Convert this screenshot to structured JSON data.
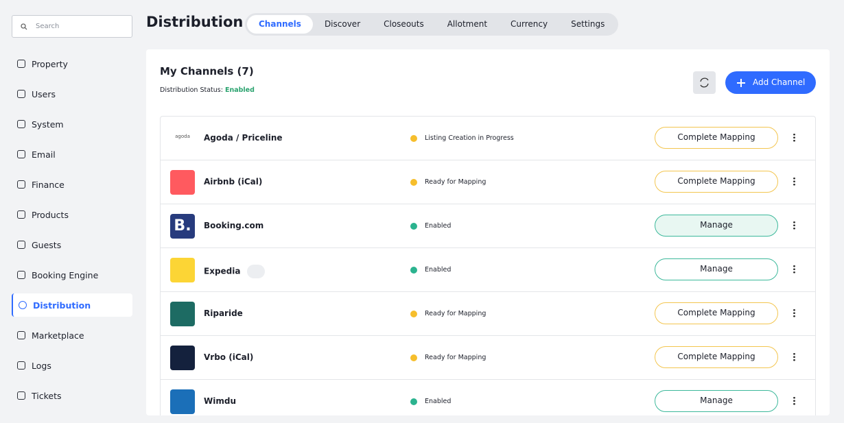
{
  "sidebar": {
    "search": "Search",
    "nav": [
      "Property",
      "Users",
      "System",
      "Email",
      "Finance",
      "Products",
      "Guests",
      "Booking Engine",
      "Distribution",
      "Marketplace",
      "Logs",
      "Tickets"
    ],
    "active": 8
  },
  "header": {
    "title": "Distribution",
    "tabs": [
      "Channels",
      "Discover",
      "Closeouts",
      "Allotment",
      "Currency",
      "Settings"
    ],
    "active_tab": 0
  },
  "card": {
    "title": "My Channels (7)",
    "status_label": "Distribution Status:",
    "status_value": "Enabled",
    "add_button": "Add Channel",
    "channels": [
      {
        "name": "Agoda / Priceline",
        "logo": "agoda",
        "logo_bg": "#ffffff",
        "status": "Listing Creation in Progress",
        "status_color": "#f6be2c",
        "action": "Complete Mapping",
        "action_color": "#f3c54e"
      },
      {
        "name": "Airbnb (iCal)",
        "logo_bg": "#ff5a5f",
        "status": "Ready for Mapping",
        "status_color": "#f6be2c",
        "action": "Complete Mapping",
        "action_color": "#f3c54e"
      },
      {
        "name": "Booking.com",
        "logo": "B.",
        "logo_bg": "#273b7d",
        "status": "Enabled",
        "status_color": "#2bb38f",
        "action": "Manage",
        "action_color": "#3bb89a",
        "hover": true
      },
      {
        "name": "Expedia",
        "logo_bg": "#fcd535",
        "status": "Enabled",
        "status_color": "#2bb38f",
        "action": "Manage",
        "action_color": "#3bb89a",
        "shared": true
      },
      {
        "name": "Riparide",
        "logo_bg": "#1d6b63",
        "status": "Ready for Mapping",
        "status_color": "#f6be2c",
        "action": "Complete Mapping",
        "action_color": "#f3c54e"
      },
      {
        "name": "Vrbo (iCal)",
        "logo_bg": "#14213d",
        "status": "Ready for Mapping",
        "status_color": "#f6be2c",
        "action": "Complete Mapping",
        "action_color": "#f3c54e"
      },
      {
        "name": "Wimdu",
        "logo_bg": "#1b6fb8",
        "status": "Enabled",
        "status_color": "#2bb38f",
        "action": "Manage",
        "action_color": "#3bb89a"
      }
    ]
  }
}
